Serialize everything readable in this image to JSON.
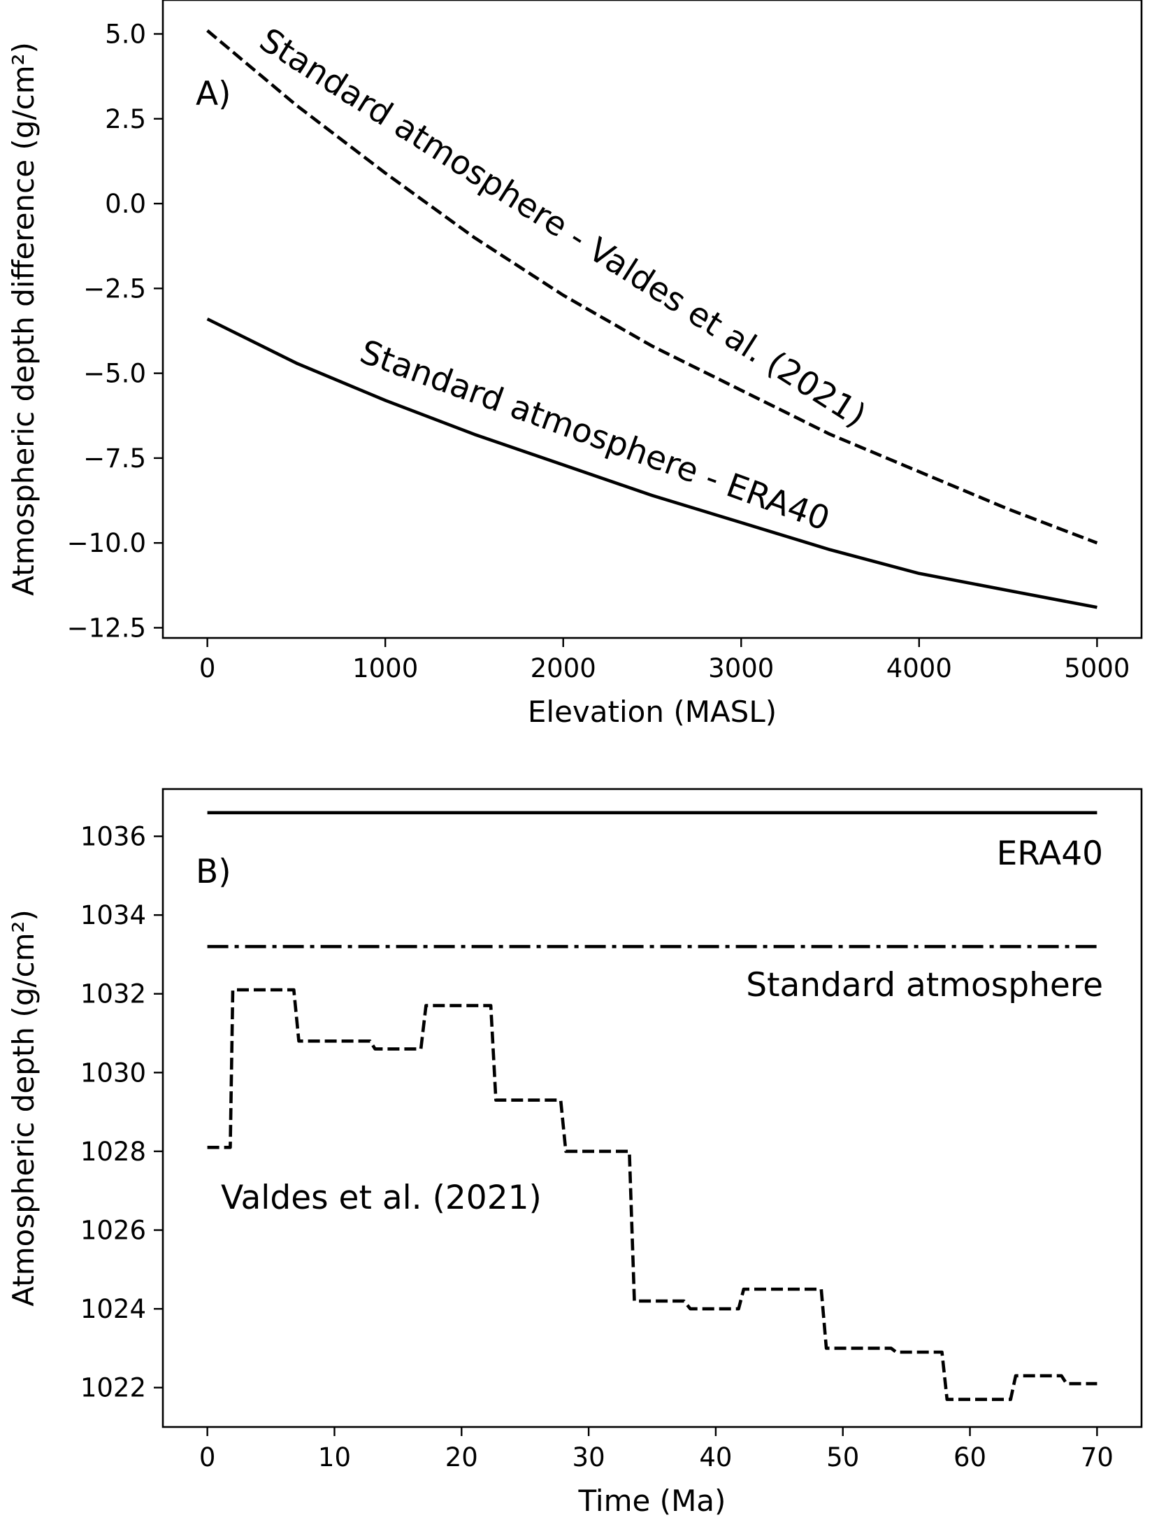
{
  "chart_data": [
    {
      "type": "line",
      "panel_label": "A)",
      "xlabel": "Elevation (MASL)",
      "ylabel": "Atmospheric depth difference (g/cm²)",
      "xlim": [
        -250,
        5250
      ],
      "ylim": [
        -12.8,
        6.0
      ],
      "xticks": [
        0,
        1000,
        2000,
        3000,
        4000,
        5000
      ],
      "yticks": [
        5.0,
        2.5,
        0.0,
        -2.5,
        -5.0,
        -7.5,
        -10.0,
        -12.5
      ],
      "grid": false,
      "series": [
        {
          "name": "Standard atmosphere - Valdes et al. (2021)",
          "style": "dashed",
          "color": "#000000",
          "x": [
            0,
            500,
            1000,
            1500,
            2000,
            2500,
            3000,
            3500,
            4000,
            4500,
            5000
          ],
          "y": [
            5.1,
            2.9,
            0.9,
            -1.0,
            -2.7,
            -4.2,
            -5.5,
            -6.8,
            -7.9,
            -9.0,
            -10.0
          ]
        },
        {
          "name": "Standard atmosphere - ERA40",
          "style": "solid",
          "color": "#000000",
          "x": [
            0,
            500,
            1000,
            1500,
            2000,
            2500,
            3000,
            3500,
            4000,
            4500,
            5000
          ],
          "y": [
            -3.4,
            -4.7,
            -5.8,
            -6.8,
            -7.7,
            -8.6,
            -9.4,
            -10.2,
            -10.9,
            -11.4,
            -11.9
          ]
        }
      ]
    },
    {
      "type": "line",
      "panel_label": "B)",
      "xlabel": "Time (Ma)",
      "ylabel": "Atmospheric depth (g/cm²)",
      "xlim": [
        -3.5,
        73.5
      ],
      "ylim": [
        1021.0,
        1037.2
      ],
      "xticks": [
        0,
        10,
        20,
        30,
        40,
        50,
        60,
        70
      ],
      "yticks": [
        1036,
        1034,
        1032,
        1030,
        1028,
        1026,
        1024,
        1022
      ],
      "grid": false,
      "series": [
        {
          "name": "ERA40",
          "style": "solid",
          "color": "#000000",
          "x": [
            0,
            70
          ],
          "y": [
            1036.6,
            1036.6
          ]
        },
        {
          "name": "Standard atmosphere",
          "style": "dashdot",
          "color": "#000000",
          "x": [
            0,
            70
          ],
          "y": [
            1033.2,
            1033.2
          ]
        },
        {
          "name": "Valdes et al. (2021)",
          "style": "dashed-step",
          "color": "#000000",
          "x": [
            0,
            1.8,
            2.0,
            6.8,
            7.2,
            12.8,
            13.2,
            16.8,
            17.2,
            22.3,
            22.7,
            27.8,
            28.2,
            33.2,
            33.6,
            37.5,
            38.0,
            41.8,
            42.2,
            48.3,
            48.7,
            53.8,
            54.2,
            57.8,
            58.2,
            63.2,
            63.6,
            67.2,
            67.6,
            70
          ],
          "y": [
            1028.1,
            1028.1,
            1032.1,
            1032.1,
            1030.8,
            1030.8,
            1030.6,
            1030.6,
            1031.7,
            1031.7,
            1029.3,
            1029.3,
            1028.0,
            1028.0,
            1024.2,
            1024.2,
            1024.0,
            1024.0,
            1024.5,
            1024.5,
            1023.0,
            1023.0,
            1022.9,
            1022.9,
            1021.7,
            1021.7,
            1022.3,
            1022.3,
            1022.1,
            1022.1
          ]
        }
      ]
    }
  ]
}
